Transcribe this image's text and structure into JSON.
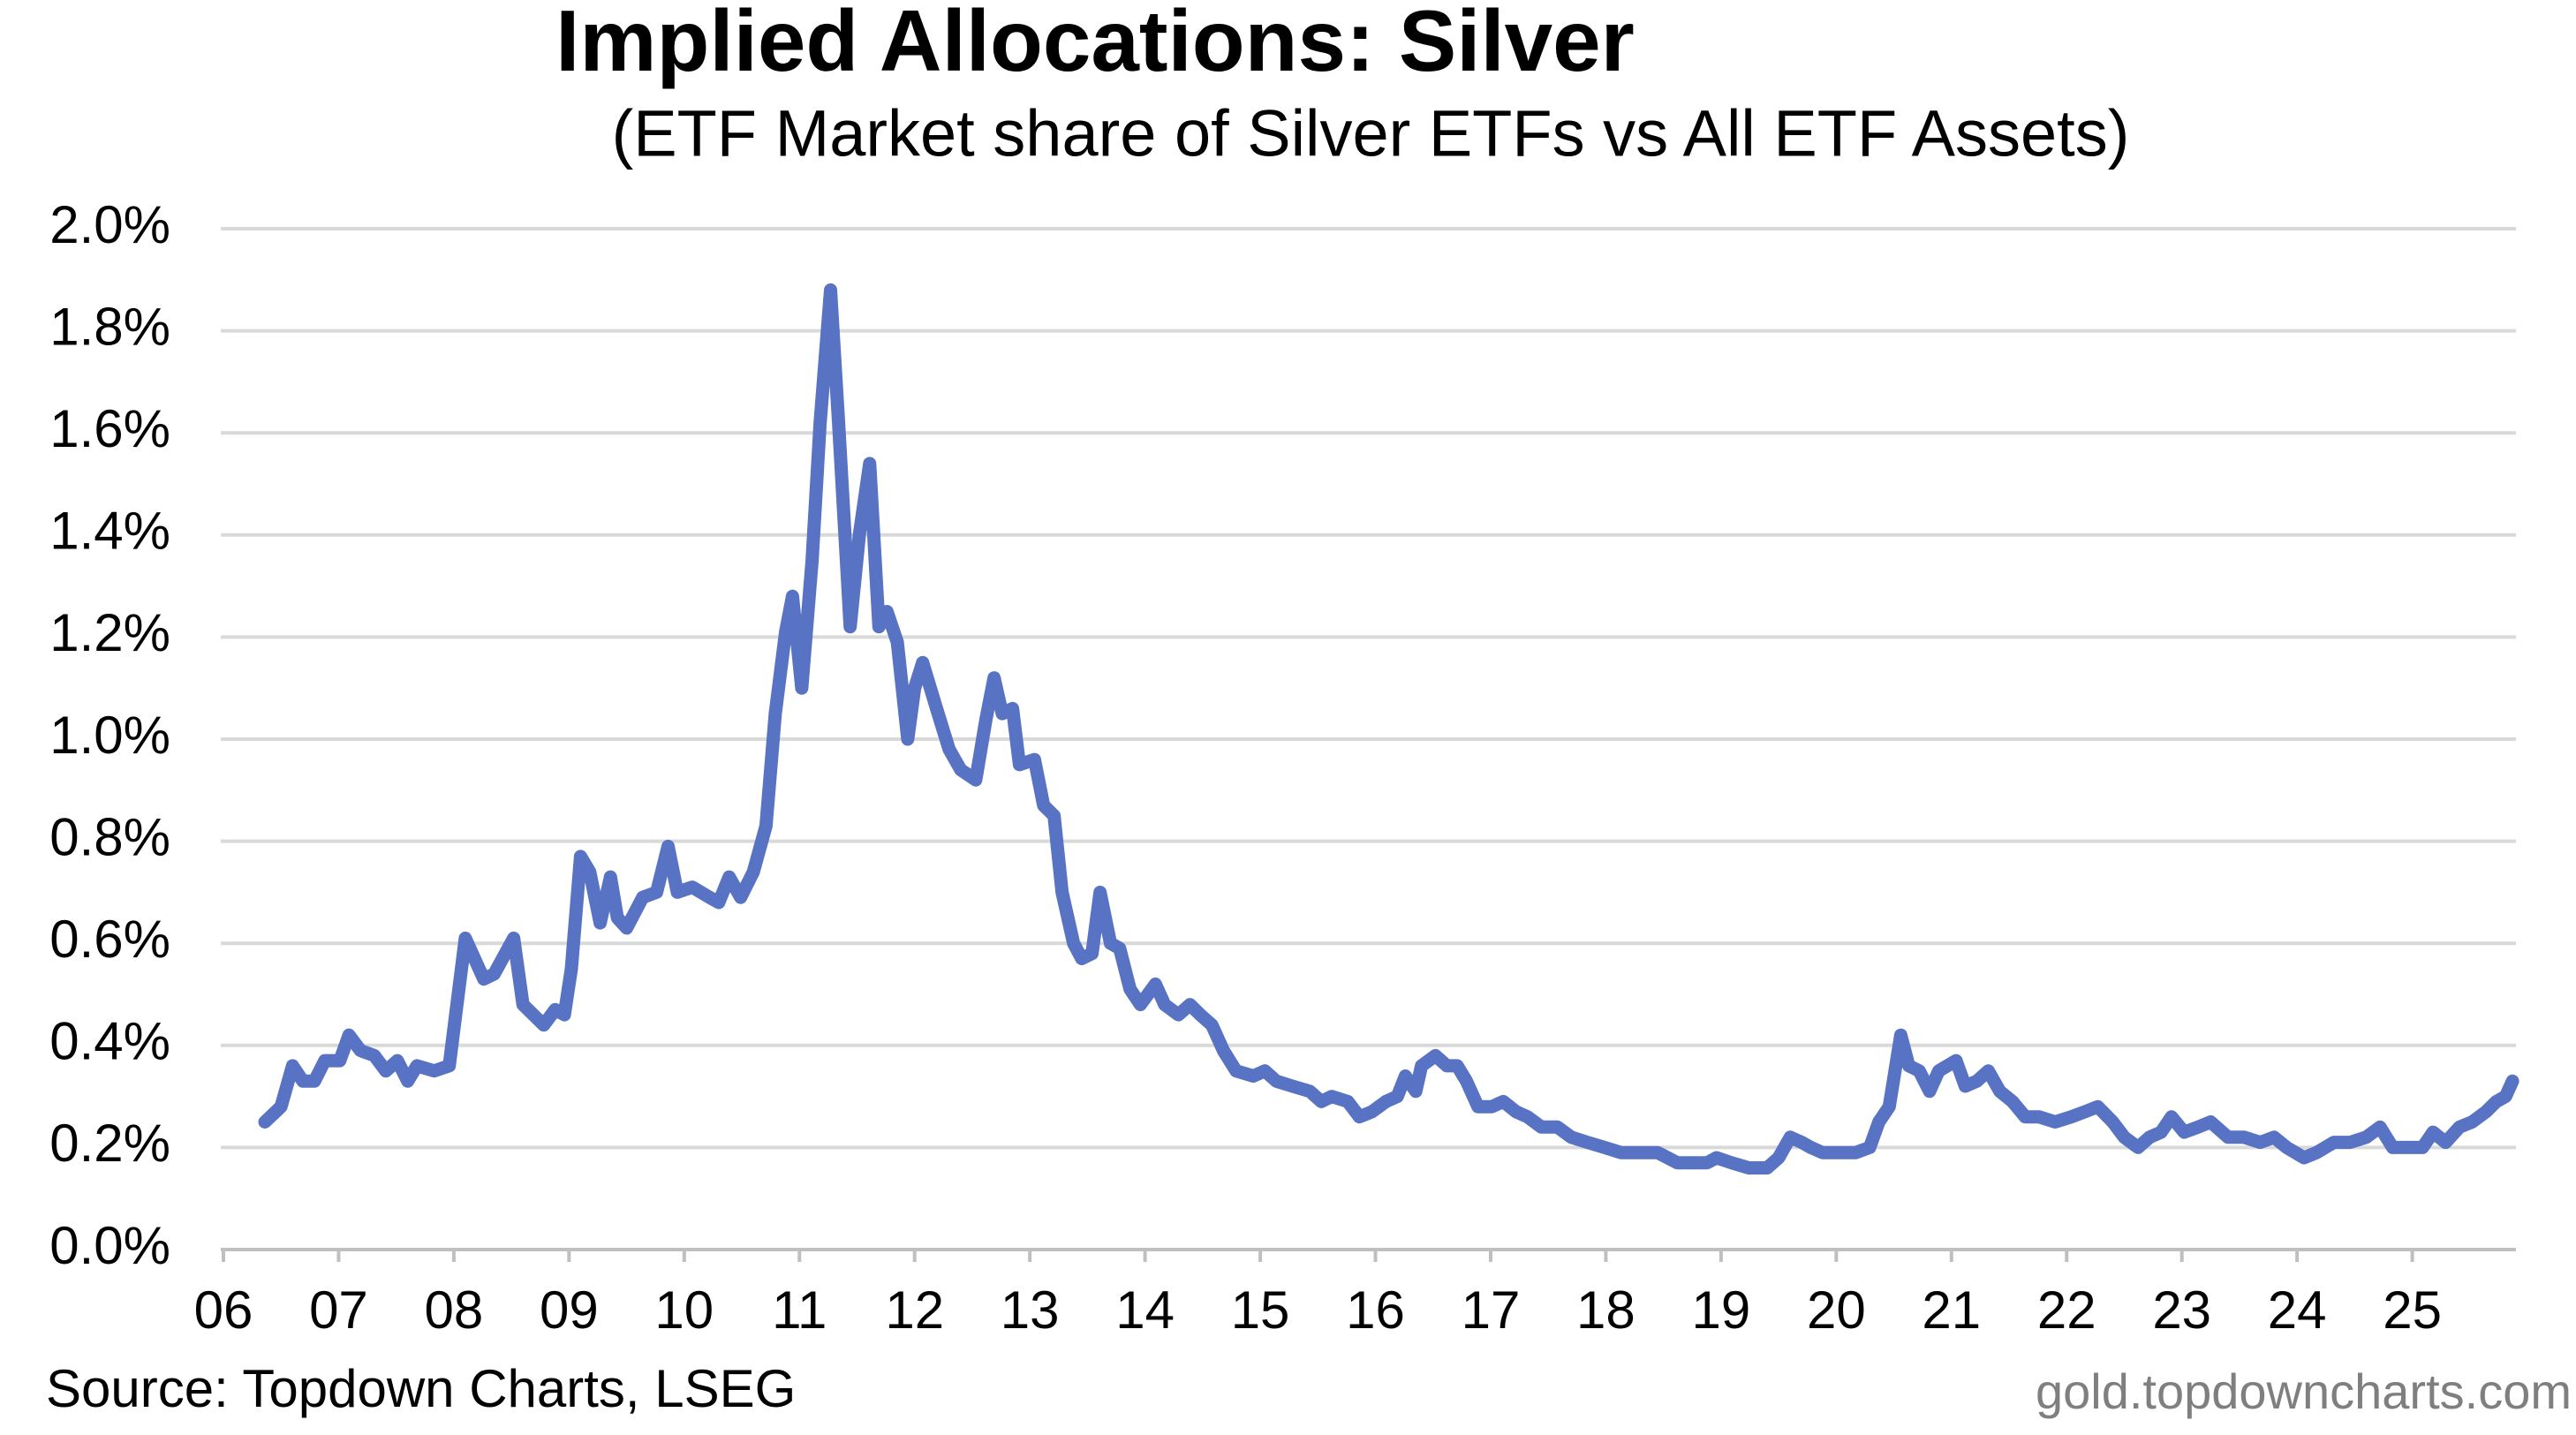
{
  "chart_data": {
    "type": "line",
    "title": "Implied Allocations: Silver",
    "subtitle": "(ETF Market share of Silver ETFs vs All ETF Assets)",
    "source": "Source: Topdown Charts, LSEG",
    "watermark": "gold.topdowncharts.com",
    "color": "#5873c4",
    "grid": true,
    "x": [
      2006.36,
      2006.5,
      2006.6,
      2006.69,
      2006.79,
      2006.88,
      2007.01,
      2007.09,
      2007.19,
      2007.31,
      2007.41,
      2007.51,
      2007.6,
      2007.68,
      2007.83,
      2007.96,
      2008.1,
      2008.26,
      2008.35,
      2008.52,
      2008.6,
      2008.78,
      2008.88,
      2008.96,
      2009.02,
      2009.1,
      2009.18,
      2009.27,
      2009.36,
      2009.42,
      2009.5,
      2009.64,
      2009.76,
      2009.86,
      2009.94,
      2010.07,
      2010.22,
      2010.3,
      2010.39,
      2010.49,
      2010.6,
      2010.71,
      2010.79,
      2010.88,
      2010.94,
      2011.02,
      2011.11,
      2011.18,
      2011.27,
      2011.34,
      2011.44,
      2011.52,
      2011.61,
      2011.69,
      2011.76,
      2011.85,
      2011.94,
      2012.0,
      2012.07,
      2012.19,
      2012.3,
      2012.4,
      2012.53,
      2012.62,
      2012.69,
      2012.76,
      2012.85,
      2012.91,
      2013.04,
      2013.12,
      2013.21,
      2013.28,
      2013.38,
      2013.45,
      2013.54,
      2013.61,
      2013.7,
      2013.78,
      2013.87,
      2013.96,
      2014.09,
      2014.17,
      2014.29,
      2014.39,
      2014.48,
      2014.58,
      2014.68,
      2014.79,
      2014.94,
      2015.04,
      2015.14,
      2015.28,
      2015.43,
      2015.53,
      2015.62,
      2015.76,
      2015.86,
      2015.97,
      2016.09,
      2016.19,
      2016.26,
      2016.35,
      2016.4,
      2016.52,
      2016.62,
      2016.71,
      2016.79,
      2016.89,
      2017.01,
      2017.11,
      2017.22,
      2017.32,
      2017.44,
      2017.58,
      2017.7,
      2017.84,
      2017.99,
      2018.13,
      2018.3,
      2018.45,
      2018.62,
      2018.76,
      2018.88,
      2018.96,
      2019.09,
      2019.24,
      2019.4,
      2019.5,
      2019.6,
      2019.7,
      2019.78,
      2019.88,
      2020.03,
      2020.17,
      2020.29,
      2020.37,
      2020.46,
      2020.56,
      2020.63,
      2020.72,
      2020.81,
      2020.89,
      2021.04,
      2021.12,
      2021.22,
      2021.32,
      2021.42,
      2021.53,
      2021.64,
      2021.76,
      2021.9,
      2022.04,
      2022.16,
      2022.27,
      2022.4,
      2022.5,
      2022.62,
      2022.72,
      2022.82,
      2022.91,
      2023.02,
      2023.14,
      2023.25,
      2023.4,
      2023.54,
      2023.68,
      2023.8,
      2023.91,
      2024.06,
      2024.17,
      2024.32,
      2024.46,
      2024.6,
      2024.72,
      2024.83,
      2024.95,
      2025.09,
      2025.18,
      2025.29,
      2025.41,
      2025.52,
      2025.64,
      2025.73,
      2025.81,
      2025.87
    ],
    "values": [
      0.25,
      0.28,
      0.36,
      0.33,
      0.33,
      0.37,
      0.37,
      0.42,
      0.39,
      0.38,
      0.35,
      0.37,
      0.33,
      0.36,
      0.35,
      0.36,
      0.61,
      0.53,
      0.54,
      0.61,
      0.48,
      0.44,
      0.47,
      0.46,
      0.55,
      0.77,
      0.74,
      0.64,
      0.73,
      0.65,
      0.63,
      0.69,
      0.7,
      0.79,
      0.7,
      0.71,
      0.69,
      0.68,
      0.73,
      0.69,
      0.74,
      0.83,
      1.05,
      1.21,
      1.28,
      1.1,
      1.35,
      1.62,
      1.88,
      1.62,
      1.22,
      1.4,
      1.54,
      1.22,
      1.25,
      1.19,
      1.0,
      1.1,
      1.15,
      1.06,
      0.98,
      0.94,
      0.92,
      1.04,
      1.12,
      1.05,
      1.06,
      0.95,
      0.96,
      0.87,
      0.85,
      0.7,
      0.6,
      0.57,
      0.58,
      0.7,
      0.6,
      0.59,
      0.51,
      0.48,
      0.52,
      0.48,
      0.46,
      0.48,
      0.46,
      0.44,
      0.39,
      0.35,
      0.34,
      0.35,
      0.33,
      0.32,
      0.31,
      0.29,
      0.3,
      0.29,
      0.26,
      0.27,
      0.29,
      0.3,
      0.34,
      0.31,
      0.36,
      0.38,
      0.36,
      0.36,
      0.33,
      0.28,
      0.28,
      0.29,
      0.27,
      0.26,
      0.24,
      0.24,
      0.22,
      0.21,
      0.2,
      0.19,
      0.19,
      0.19,
      0.17,
      0.17,
      0.17,
      0.18,
      0.17,
      0.16,
      0.16,
      0.18,
      0.22,
      0.21,
      0.2,
      0.19,
      0.19,
      0.19,
      0.2,
      0.25,
      0.28,
      0.42,
      0.36,
      0.35,
      0.31,
      0.35,
      0.37,
      0.32,
      0.33,
      0.35,
      0.31,
      0.29,
      0.26,
      0.26,
      0.25,
      0.26,
      0.27,
      0.28,
      0.25,
      0.22,
      0.2,
      0.22,
      0.23,
      0.26,
      0.23,
      0.24,
      0.25,
      0.22,
      0.22,
      0.21,
      0.22,
      0.2,
      0.18,
      0.19,
      0.21,
      0.21,
      0.22,
      0.24,
      0.2,
      0.2,
      0.2,
      0.23,
      0.21,
      0.24,
      0.25,
      0.27,
      0.29,
      0.3,
      0.33
    ],
    "xlim": [
      2006,
      2025.9
    ],
    "xticks": [
      {
        "value": 2006,
        "label": "06"
      },
      {
        "value": 2007,
        "label": "07"
      },
      {
        "value": 2008,
        "label": "08"
      },
      {
        "value": 2009,
        "label": "09"
      },
      {
        "value": 2010,
        "label": "10"
      },
      {
        "value": 2011,
        "label": "11"
      },
      {
        "value": 2012,
        "label": "12"
      },
      {
        "value": 2013,
        "label": "13"
      },
      {
        "value": 2014,
        "label": "14"
      },
      {
        "value": 2015,
        "label": "15"
      },
      {
        "value": 2016,
        "label": "16"
      },
      {
        "value": 2017,
        "label": "17"
      },
      {
        "value": 2018,
        "label": "18"
      },
      {
        "value": 2019,
        "label": "19"
      },
      {
        "value": 2020,
        "label": "20"
      },
      {
        "value": 2021,
        "label": "21"
      },
      {
        "value": 2022,
        "label": "22"
      },
      {
        "value": 2023,
        "label": "23"
      },
      {
        "value": 2024,
        "label": "24"
      },
      {
        "value": 2025,
        "label": "25"
      }
    ],
    "ylim": [
      0,
      2.0
    ],
    "yticks": [
      {
        "value": 0,
        "label": "0.0%"
      },
      {
        "value": 0.2,
        "label": "0.2%"
      },
      {
        "value": 0.4,
        "label": "0.4%"
      },
      {
        "value": 0.6,
        "label": "0.6%"
      },
      {
        "value": 0.8,
        "label": "0.8%"
      },
      {
        "value": 1.0,
        "label": "1.0%"
      },
      {
        "value": 1.2,
        "label": "1.2%"
      },
      {
        "value": 1.4,
        "label": "1.4%"
      },
      {
        "value": 1.6,
        "label": "1.6%"
      },
      {
        "value": 1.8,
        "label": "1.8%"
      },
      {
        "value": 2.0,
        "label": "2.0%"
      }
    ]
  }
}
